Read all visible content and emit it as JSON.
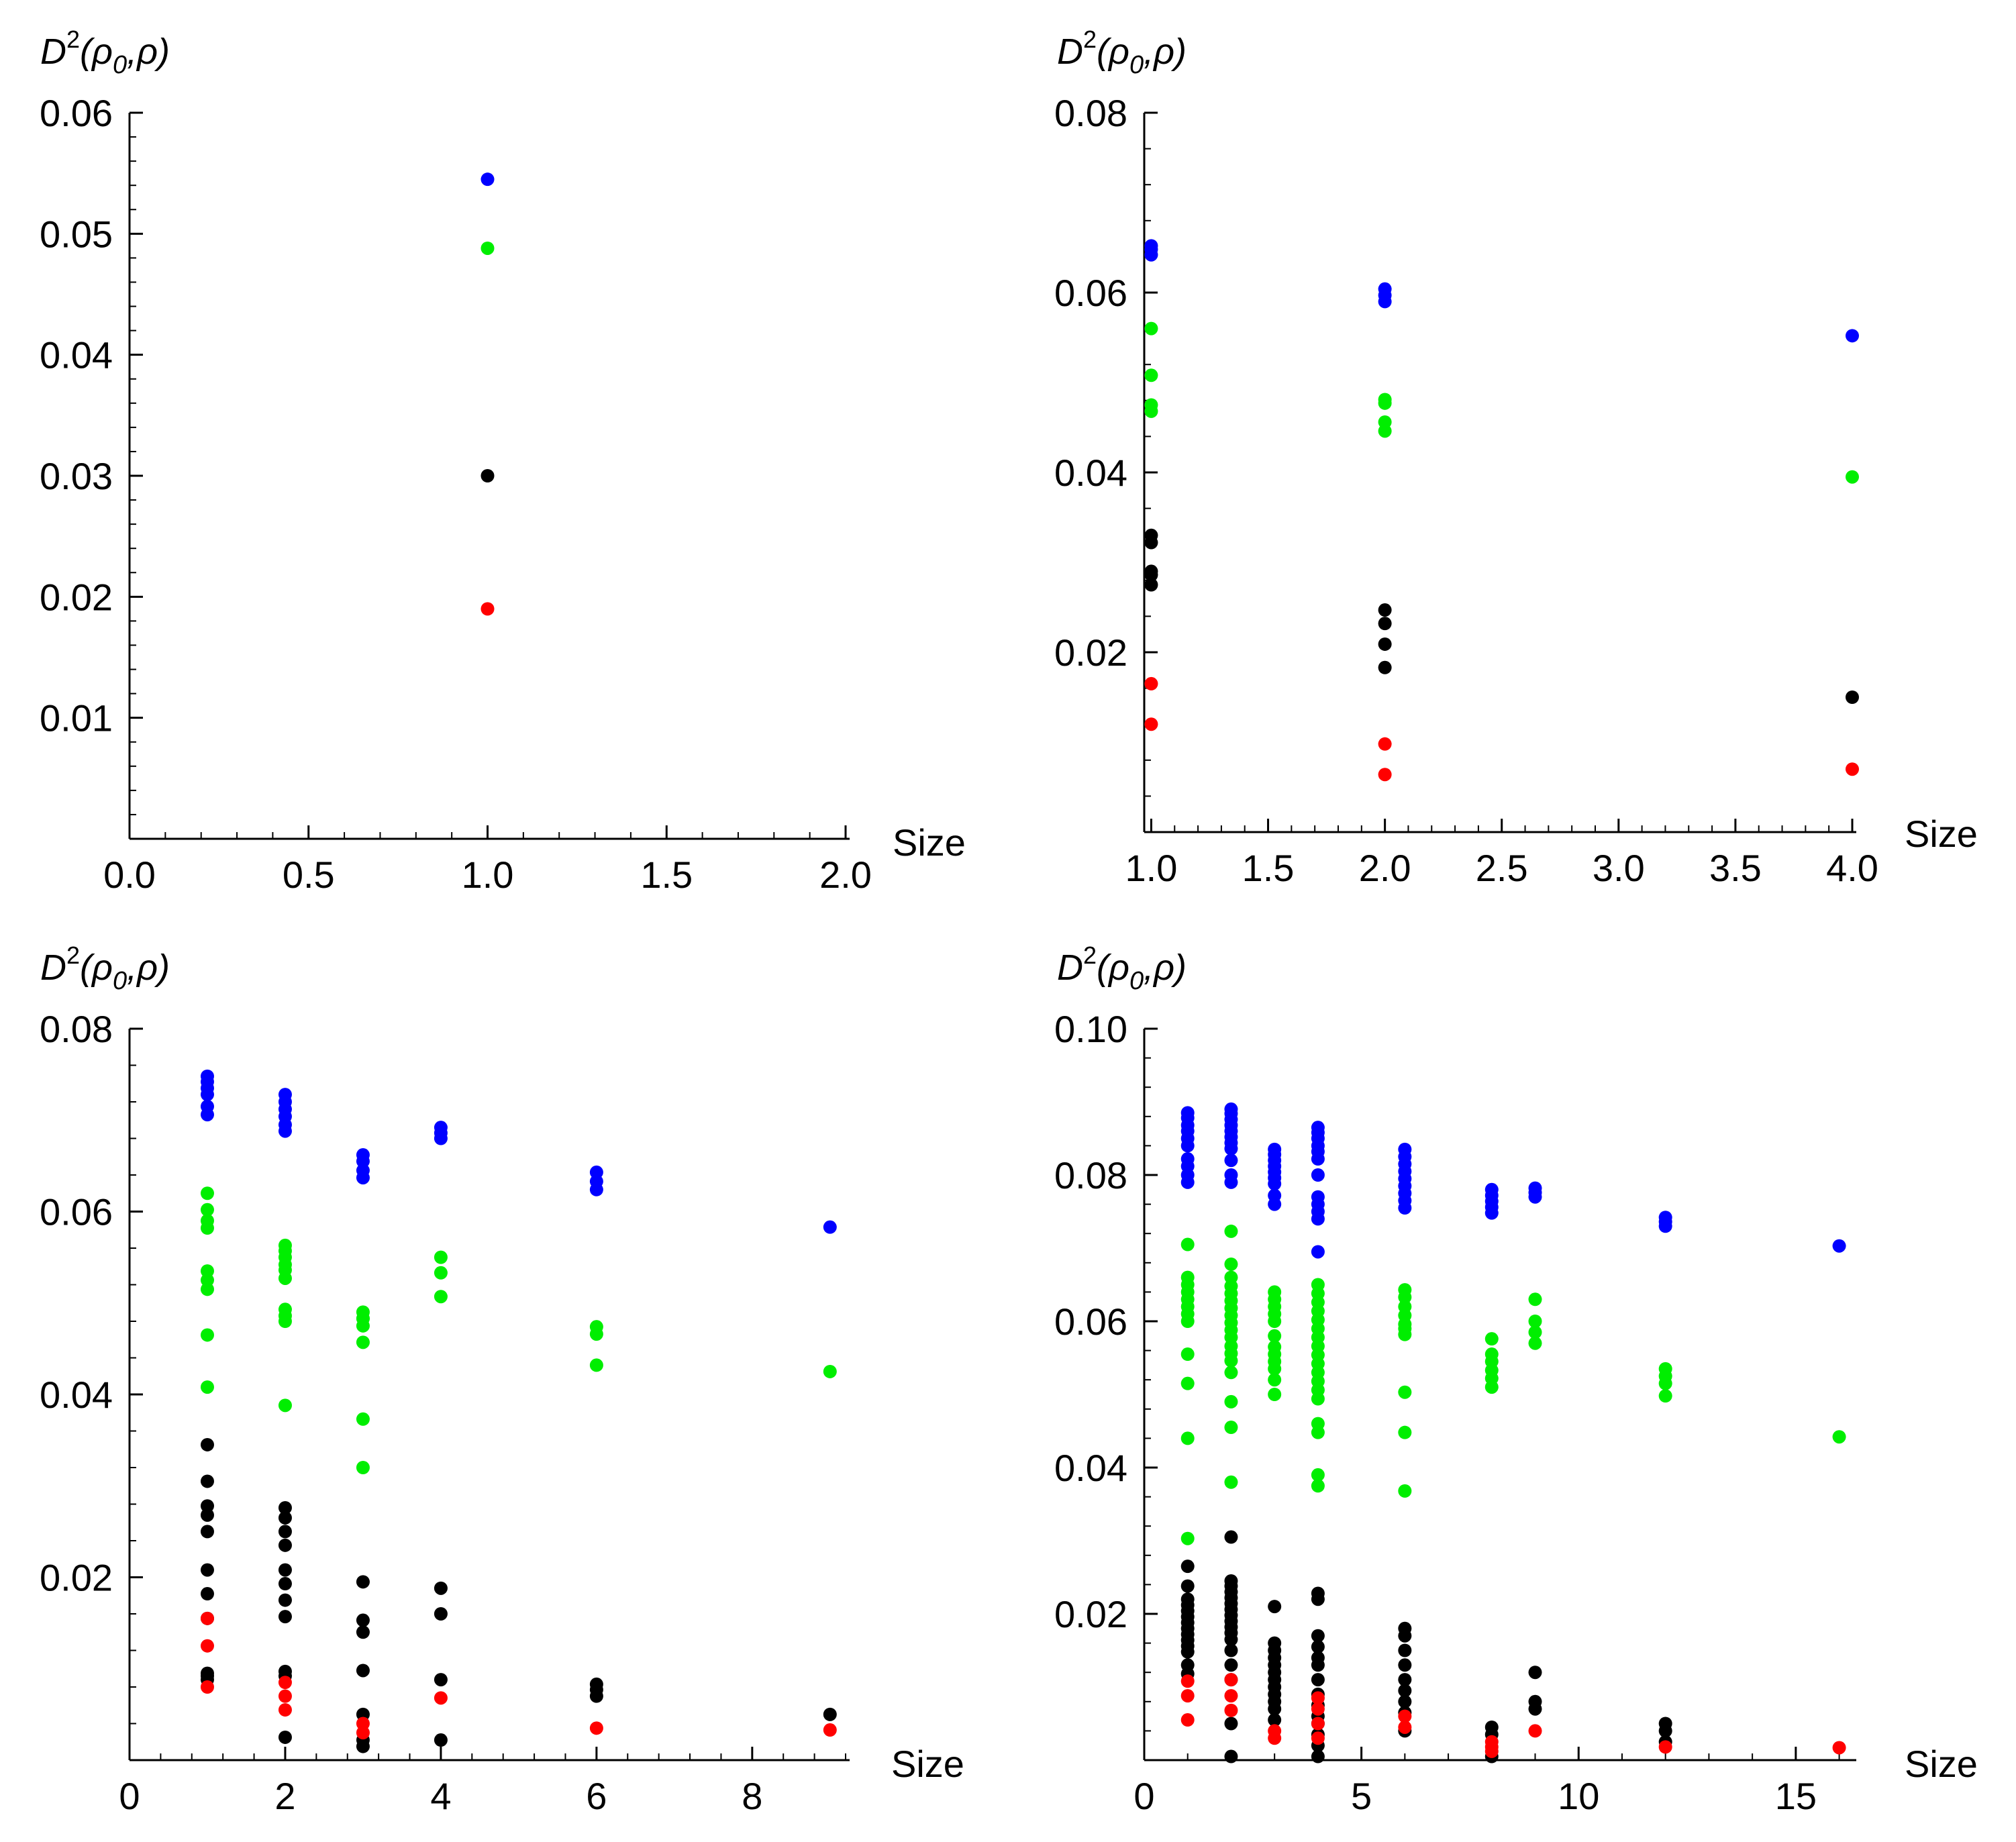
{
  "figure": {
    "series_colors": {
      "blue": "#0000ff",
      "green": "#00ee00",
      "black": "#000000",
      "red": "#ff0000"
    }
  },
  "chart_data": [
    {
      "type": "scatter",
      "title": "",
      "ylabel": {
        "base": "D",
        "sup": "2",
        "open": "(ρ",
        "sub": "0",
        "rest": ",ρ)"
      },
      "xlabel": "Size",
      "xlim": [
        0,
        2.0
      ],
      "ylim": [
        0,
        0.06
      ],
      "xticks": [
        0,
        0.5,
        1.0,
        1.5,
        2.0
      ],
      "xtick_labels": [
        "0.0",
        "0.5",
        "1.0",
        "1.5",
        "2.0"
      ],
      "yticks": [
        0.01,
        0.02,
        0.03,
        0.04,
        0.05,
        0.06
      ],
      "ytick_labels": [
        "0.01",
        "0.02",
        "0.03",
        "0.04",
        "0.05",
        "0.06"
      ],
      "series": [
        {
          "name": "blue",
          "x": [
            1
          ],
          "y": [
            0.0545
          ]
        },
        {
          "name": "green",
          "x": [
            1
          ],
          "y": [
            0.0488
          ]
        },
        {
          "name": "black",
          "x": [
            1
          ],
          "y": [
            0.03
          ]
        },
        {
          "name": "red",
          "x": [
            1
          ],
          "y": [
            0.019
          ]
        }
      ]
    },
    {
      "type": "scatter",
      "title": "",
      "ylabel": {
        "base": "D",
        "sup": "2",
        "open": "(ρ",
        "sub": "0",
        "rest": ",ρ)"
      },
      "xlabel": "Size",
      "xlim": [
        0.97,
        4.0
      ],
      "ylim": [
        0,
        0.08
      ],
      "xticks": [
        1.0,
        1.5,
        2.0,
        2.5,
        3.0,
        3.5,
        4.0
      ],
      "xtick_labels": [
        "1.0",
        "1.5",
        "2.0",
        "2.5",
        "3.0",
        "3.5",
        "4.0"
      ],
      "yticks": [
        0.02,
        0.04,
        0.06,
        0.08
      ],
      "ytick_labels": [
        "0.02",
        "0.04",
        "0.06",
        "0.08"
      ],
      "series": [
        {
          "name": "blue",
          "x": [
            1,
            1,
            1,
            2,
            2,
            2,
            4
          ],
          "y": [
            0.0652,
            0.0648,
            0.0642,
            0.0604,
            0.0597,
            0.059,
            0.0552
          ]
        },
        {
          "name": "green",
          "x": [
            1,
            1,
            1,
            1,
            2,
            2,
            2,
            2,
            4
          ],
          "y": [
            0.056,
            0.0508,
            0.0475,
            0.0468,
            0.0481,
            0.0477,
            0.0456,
            0.0446,
            0.0395
          ]
        },
        {
          "name": "black",
          "x": [
            1,
            1,
            1,
            1,
            1,
            2,
            2,
            2,
            2,
            4
          ],
          "y": [
            0.033,
            0.0322,
            0.029,
            0.0286,
            0.0275,
            0.0247,
            0.0232,
            0.0209,
            0.0183,
            0.015
          ]
        },
        {
          "name": "red",
          "x": [
            1,
            1,
            2,
            2,
            4
          ],
          "y": [
            0.0165,
            0.012,
            0.0098,
            0.0064,
            0.007
          ]
        }
      ]
    },
    {
      "type": "scatter",
      "title": "",
      "ylabel": {
        "base": "D",
        "sup": "2",
        "open": "(ρ",
        "sub": "0",
        "rest": ",ρ)"
      },
      "xlabel": "Size",
      "xlim": [
        0,
        9.2
      ],
      "ylim": [
        0,
        0.08
      ],
      "xticks": [
        0,
        2,
        4,
        6,
        8
      ],
      "xtick_labels": [
        "0",
        "2",
        "4",
        "6",
        "8"
      ],
      "yticks": [
        0.02,
        0.04,
        0.06,
        0.08
      ],
      "ytick_labels": [
        "0.02",
        "0.04",
        "0.06",
        "0.08"
      ],
      "series": [
        {
          "name": "blue",
          "x": [
            1,
            1,
            1,
            1,
            1,
            1,
            2,
            2,
            2,
            2,
            2,
            2,
            3,
            3,
            3,
            3,
            4,
            4,
            4,
            6,
            6,
            6,
            9
          ],
          "y": [
            0.0748,
            0.0742,
            0.0735,
            0.0728,
            0.0715,
            0.0706,
            0.0728,
            0.072,
            0.0712,
            0.0704,
            0.0695,
            0.0688,
            0.0662,
            0.0655,
            0.0645,
            0.0637,
            0.0692,
            0.0686,
            0.068,
            0.0643,
            0.0633,
            0.0624,
            0.0583
          ]
        },
        {
          "name": "green",
          "x": [
            1,
            1,
            1,
            1,
            1,
            1,
            1,
            1,
            1,
            2,
            2,
            2,
            2,
            2,
            2,
            2,
            2,
            2,
            2,
            3,
            3,
            3,
            3,
            3,
            3,
            3,
            4,
            4,
            4,
            6,
            6,
            6,
            9
          ],
          "y": [
            0.062,
            0.0602,
            0.059,
            0.0582,
            0.0535,
            0.0525,
            0.0515,
            0.0465,
            0.0408,
            0.0563,
            0.0557,
            0.055,
            0.0542,
            0.0536,
            0.0527,
            0.0493,
            0.0486,
            0.048,
            0.0388,
            0.049,
            0.0483,
            0.0475,
            0.0457,
            0.0373,
            0.032,
            0.0483,
            0.055,
            0.0533,
            0.0507,
            0.0474,
            0.0466,
            0.0432,
            0.0425
          ]
        },
        {
          "name": "black",
          "x": [
            1,
            1,
            1,
            1,
            1,
            1,
            1,
            1,
            1,
            1,
            1,
            2,
            2,
            2,
            2,
            2,
            2,
            2,
            2,
            2,
            2,
            2,
            3,
            3,
            3,
            3,
            3,
            3,
            3,
            4,
            4,
            4,
            4,
            6,
            6,
            6,
            9
          ],
          "y": [
            0.0345,
            0.0305,
            0.0278,
            0.0268,
            0.025,
            0.0208,
            0.0182,
            0.0155,
            0.0095,
            0.0092,
            0.0088,
            0.0276,
            0.0265,
            0.025,
            0.0235,
            0.0208,
            0.0193,
            0.0175,
            0.0157,
            0.0097,
            0.0092,
            0.0025,
            0.0195,
            0.0153,
            0.014,
            0.0098,
            0.005,
            0.0022,
            0.0015,
            0.0188,
            0.016,
            0.0088,
            0.0022,
            0.0083,
            0.0077,
            0.007,
            0.005
          ]
        },
        {
          "name": "red",
          "x": [
            1,
            1,
            1,
            2,
            2,
            2,
            3,
            3,
            4,
            6,
            9
          ],
          "y": [
            0.0155,
            0.0125,
            0.008,
            0.0085,
            0.007,
            0.0055,
            0.004,
            0.003,
            0.0068,
            0.0035,
            0.0033
          ]
        }
      ]
    },
    {
      "type": "scatter",
      "title": "",
      "ylabel": {
        "base": "D",
        "sup": "2",
        "open": "(ρ",
        "sub": "0",
        "rest": ",ρ)"
      },
      "xlabel": "Size",
      "xlim": [
        0,
        16.3
      ],
      "ylim": [
        0,
        0.1
      ],
      "xticks": [
        0,
        5,
        10,
        15
      ],
      "xtick_labels": [
        "0",
        "5",
        "10",
        "15"
      ],
      "yticks": [
        0.02,
        0.04,
        0.06,
        0.08,
        0.1
      ],
      "ytick_labels": [
        "0.02",
        "0.04",
        "0.06",
        "0.08",
        "0.10"
      ],
      "series": [
        {
          "name": "blue",
          "x": [
            1,
            1,
            1,
            1,
            1,
            1,
            1,
            1,
            1,
            1,
            2,
            2,
            2,
            2,
            2,
            2,
            2,
            2,
            2,
            2,
            2,
            3,
            3,
            3,
            3,
            3,
            3,
            3,
            3,
            3,
            4,
            4,
            4,
            4,
            4,
            4,
            4,
            4,
            4,
            4,
            4,
            4,
            6,
            6,
            6,
            6,
            6,
            6,
            6,
            6,
            6,
            8,
            8,
            8,
            8,
            8,
            9,
            9,
            9,
            12,
            12,
            12,
            16
          ],
          "y": [
            0.0885,
            0.0878,
            0.0868,
            0.086,
            0.085,
            0.084,
            0.0822,
            0.0812,
            0.08,
            0.079,
            0.089,
            0.0884,
            0.0876,
            0.0868,
            0.086,
            0.0852,
            0.0844,
            0.0836,
            0.082,
            0.08,
            0.079,
            0.0835,
            0.0828,
            0.082,
            0.0812,
            0.0804,
            0.0796,
            0.0788,
            0.0772,
            0.076,
            0.0865,
            0.0858,
            0.085,
            0.084,
            0.0832,
            0.0822,
            0.08,
            0.077,
            0.076,
            0.075,
            0.074,
            0.0695,
            0.0835,
            0.0825,
            0.0815,
            0.0805,
            0.0795,
            0.0785,
            0.0775,
            0.0765,
            0.0755,
            0.078,
            0.0772,
            0.0764,
            0.0756,
            0.0748,
            0.0782,
            0.0776,
            0.077,
            0.0742,
            0.0736,
            0.073,
            0.0703
          ]
        },
        {
          "name": "green",
          "x": [
            1,
            1,
            1,
            1,
            1,
            1,
            1,
            1,
            1,
            1,
            1,
            1,
            2,
            2,
            2,
            2,
            2,
            2,
            2,
            2,
            2,
            2,
            2,
            2,
            2,
            2,
            2,
            2,
            2,
            2,
            3,
            3,
            3,
            3,
            3,
            3,
            3,
            3,
            3,
            3,
            3,
            3,
            4,
            4,
            4,
            4,
            4,
            4,
            4,
            4,
            4,
            4,
            4,
            4,
            4,
            4,
            4,
            4,
            4,
            4,
            6,
            6,
            6,
            6,
            6,
            6,
            6,
            6,
            6,
            6,
            8,
            8,
            8,
            8,
            8,
            8,
            9,
            9,
            9,
            9,
            12,
            12,
            12,
            12,
            16
          ],
          "y": [
            0.0705,
            0.066,
            0.065,
            0.064,
            0.063,
            0.062,
            0.061,
            0.06,
            0.0555,
            0.0515,
            0.044,
            0.0303,
            0.0723,
            0.0678,
            0.066,
            0.0648,
            0.0638,
            0.0628,
            0.0618,
            0.0608,
            0.0598,
            0.0588,
            0.0578,
            0.0566,
            0.0556,
            0.0546,
            0.053,
            0.049,
            0.0455,
            0.038,
            0.064,
            0.063,
            0.062,
            0.061,
            0.06,
            0.058,
            0.0565,
            0.0555,
            0.0545,
            0.0535,
            0.052,
            0.05,
            0.065,
            0.0638,
            0.0626,
            0.0614,
            0.0602,
            0.059,
            0.0578,
            0.0566,
            0.0554,
            0.0542,
            0.053,
            0.0518,
            0.0506,
            0.0494,
            0.046,
            0.0448,
            0.039,
            0.0375,
            0.0643,
            0.0633,
            0.062,
            0.0608,
            0.0596,
            0.0582,
            0.0503,
            0.0448,
            0.0368,
            0.059,
            0.0576,
            0.0555,
            0.0545,
            0.0533,
            0.0522,
            0.051,
            0.063,
            0.06,
            0.0585,
            0.057,
            0.0535,
            0.0525,
            0.0515,
            0.0498,
            0.0442
          ]
        },
        {
          "name": "black",
          "x": [
            1,
            1,
            1,
            1,
            1,
            1,
            1,
            1,
            1,
            1,
            1,
            1,
            1,
            1,
            2,
            2,
            2,
            2,
            2,
            2,
            2,
            2,
            2,
            2,
            2,
            2,
            2,
            2,
            2,
            2,
            2,
            3,
            3,
            3,
            3,
            3,
            3,
            3,
            3,
            3,
            3,
            3,
            3,
            4,
            4,
            4,
            4,
            4,
            4,
            4,
            4,
            4,
            4,
            4,
            4,
            4,
            4,
            6,
            6,
            6,
            6,
            6,
            6,
            6,
            6,
            6,
            8,
            8,
            8,
            9,
            9,
            9,
            12,
            12,
            12
          ],
          "y": [
            0.0265,
            0.0238,
            0.022,
            0.0212,
            0.0204,
            0.0196,
            0.0188,
            0.018,
            0.0172,
            0.0164,
            0.0156,
            0.0148,
            0.013,
            0.0118,
            0.0305,
            0.0245,
            0.0238,
            0.023,
            0.0222,
            0.0214,
            0.0206,
            0.0198,
            0.019,
            0.0182,
            0.0174,
            0.0165,
            0.015,
            0.013,
            0.011,
            0.005,
            0.0005,
            0.021,
            0.016,
            0.015,
            0.014,
            0.013,
            0.012,
            0.011,
            0.01,
            0.009,
            0.008,
            0.007,
            0.0055,
            0.0228,
            0.022,
            0.017,
            0.0155,
            0.014,
            0.013,
            0.011,
            0.009,
            0.0075,
            0.006,
            0.005,
            0.0035,
            0.002,
            0.0005,
            0.018,
            0.017,
            0.015,
            0.013,
            0.011,
            0.0095,
            0.008,
            0.0065,
            0.004,
            0.0045,
            0.0035,
            0.0005,
            0.012,
            0.008,
            0.007,
            0.005,
            0.004,
            0.0025
          ]
        },
        {
          "name": "red",
          "x": [
            1,
            1,
            1,
            2,
            2,
            2,
            3,
            3,
            4,
            4,
            4,
            4,
            6,
            6,
            8,
            8,
            8,
            9,
            12,
            16
          ],
          "y": [
            0.0108,
            0.0088,
            0.0055,
            0.011,
            0.0088,
            0.0068,
            0.004,
            0.003,
            0.0085,
            0.007,
            0.005,
            0.003,
            0.006,
            0.0045,
            0.0025,
            0.0018,
            0.0012,
            0.004,
            0.0018,
            0.0017
          ]
        }
      ]
    }
  ]
}
